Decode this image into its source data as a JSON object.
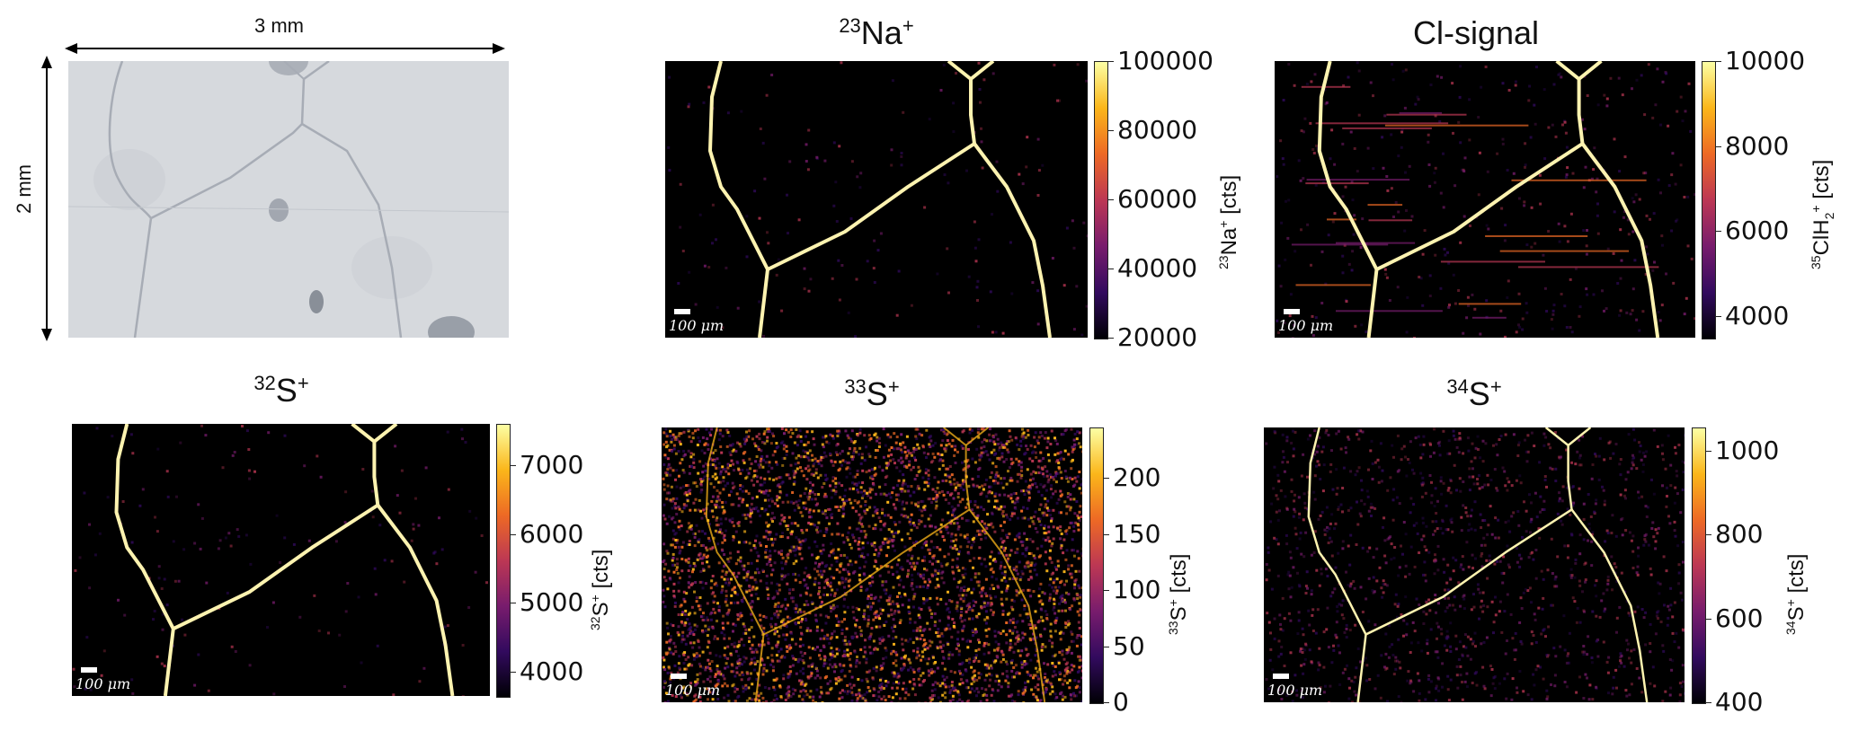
{
  "optical": {
    "width_label": "3 mm",
    "height_label": "2 mm"
  },
  "scale_label": "100 μm",
  "panels": [
    {
      "id": "na23",
      "title_sup": "23",
      "title_main": "Na",
      "title_charge": "+",
      "cbar_label_sup": "23",
      "cbar_label_main": "Na",
      "cbar_label_charge": "+",
      "cbar_label_unit": "[cts]",
      "ticks": [
        "100000",
        "80000",
        "60000",
        "40000",
        "20000"
      ],
      "noise": "low"
    },
    {
      "id": "cl",
      "title_plain": "Cl-signal",
      "cbar_label_sup": "35",
      "cbar_label_main": "ClH",
      "cbar_label_sub": "2",
      "cbar_label_charge": "+",
      "cbar_label_unit": "[cts]",
      "ticks": [
        "10000",
        "8000",
        "6000",
        "4000"
      ],
      "noise": "lines"
    },
    {
      "id": "s32",
      "title_sup": "32",
      "title_main": "S",
      "title_charge": "+",
      "cbar_label_sup": "32",
      "cbar_label_main": "S",
      "cbar_label_charge": "+",
      "cbar_label_unit": "[cts]",
      "ticks": [
        "7000",
        "6000",
        "5000",
        "4000"
      ],
      "noise": "low"
    },
    {
      "id": "s33",
      "title_sup": "33",
      "title_main": "S",
      "title_charge": "+",
      "cbar_label_sup": "33",
      "cbar_label_main": "S",
      "cbar_label_charge": "+",
      "cbar_label_unit": "[cts]",
      "ticks": [
        "200",
        "150",
        "100",
        "50",
        "0"
      ],
      "noise": "high"
    },
    {
      "id": "s34",
      "title_sup": "34",
      "title_main": "S",
      "title_charge": "+",
      "cbar_label_sup": "34",
      "cbar_label_main": "S",
      "cbar_label_charge": "+",
      "cbar_label_unit": "[cts]",
      "ticks": [
        "1000",
        "800",
        "600",
        "400"
      ],
      "noise": "medium"
    }
  ],
  "colors": {
    "colormap": [
      "#000004",
      "#320a5e",
      "#781c6d",
      "#bc3754",
      "#ed6925",
      "#fbb61a",
      "#fcffa4"
    ],
    "optical_bg": "#d6d9dd",
    "boundary_bright": "#fdf3b0"
  }
}
